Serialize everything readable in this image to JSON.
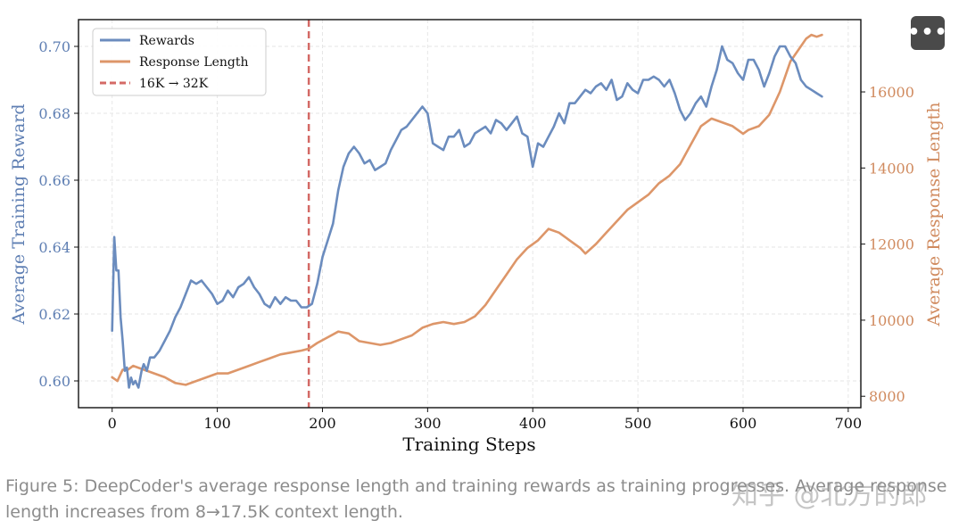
{
  "menu": {
    "more_label": "•••"
  },
  "chart_data": {
    "type": "line",
    "x_label": "Training Steps",
    "y_left_label": "Average Training Reward",
    "y_right_label": "Average Response Length",
    "x_ticks": [
      0,
      100,
      200,
      300,
      400,
      500,
      600,
      700
    ],
    "x_range": [
      -32,
      712
    ],
    "y_left_range": [
      0.592,
      0.708
    ],
    "y_left_ticks": [
      "0.60",
      "0.62",
      "0.64",
      "0.66",
      "0.68",
      "0.70"
    ],
    "y_right_range": [
      7700,
      17900
    ],
    "y_right_ticks": [
      "8000",
      "10000",
      "12000",
      "14000",
      "16000"
    ],
    "legend": [
      "Rewards",
      "Response Length",
      "16K → 32K"
    ],
    "context_switch_step": 187,
    "colors": {
      "rewards": "#6b8cbe",
      "length": "#dd9669",
      "vline": "#d46a66",
      "left_axis": "#5f7fb3",
      "right_axis": "#d08a5e"
    },
    "series": [
      {
        "name": "Rewards",
        "x": [
          0,
          2,
          4,
          6,
          8,
          10,
          12,
          14,
          16,
          18,
          20,
          22,
          25,
          28,
          30,
          33,
          36,
          40,
          45,
          50,
          55,
          60,
          65,
          70,
          75,
          80,
          85,
          90,
          95,
          100,
          105,
          110,
          115,
          120,
          125,
          130,
          135,
          140,
          145,
          150,
          155,
          160,
          165,
          170,
          175,
          180,
          185,
          190,
          195,
          200,
          205,
          210,
          215,
          220,
          225,
          230,
          235,
          240,
          245,
          250,
          255,
          260,
          265,
          270,
          275,
          280,
          285,
          290,
          295,
          300,
          305,
          310,
          315,
          320,
          325,
          330,
          335,
          340,
          345,
          350,
          355,
          360,
          365,
          370,
          375,
          380,
          385,
          390,
          395,
          400,
          405,
          410,
          415,
          420,
          425,
          430,
          435,
          440,
          445,
          450,
          455,
          460,
          465,
          470,
          475,
          480,
          485,
          490,
          495,
          500,
          505,
          510,
          515,
          520,
          525,
          530,
          535,
          540,
          545,
          550,
          555,
          560,
          565,
          570,
          575,
          580,
          585,
          590,
          595,
          600,
          605,
          610,
          615,
          620,
          625,
          630,
          635,
          640,
          645,
          650,
          655,
          660,
          665,
          670,
          675
        ],
        "values": [
          0.615,
          0.643,
          0.633,
          0.633,
          0.619,
          0.612,
          0.603,
          0.604,
          0.598,
          0.601,
          0.599,
          0.6,
          0.598,
          0.603,
          0.605,
          0.603,
          0.607,
          0.607,
          0.609,
          0.612,
          0.615,
          0.619,
          0.622,
          0.626,
          0.63,
          0.629,
          0.63,
          0.628,
          0.626,
          0.623,
          0.624,
          0.627,
          0.625,
          0.628,
          0.629,
          0.631,
          0.628,
          0.626,
          0.623,
          0.622,
          0.625,
          0.623,
          0.625,
          0.624,
          0.624,
          0.622,
          0.622,
          0.623,
          0.629,
          0.637,
          0.642,
          0.647,
          0.657,
          0.664,
          0.668,
          0.67,
          0.668,
          0.665,
          0.666,
          0.663,
          0.664,
          0.665,
          0.669,
          0.672,
          0.675,
          0.676,
          0.678,
          0.68,
          0.682,
          0.68,
          0.671,
          0.67,
          0.669,
          0.673,
          0.673,
          0.675,
          0.67,
          0.671,
          0.674,
          0.675,
          0.676,
          0.674,
          0.678,
          0.677,
          0.675,
          0.677,
          0.679,
          0.674,
          0.673,
          0.664,
          0.671,
          0.67,
          0.673,
          0.676,
          0.68,
          0.677,
          0.683,
          0.683,
          0.685,
          0.687,
          0.686,
          0.688,
          0.689,
          0.687,
          0.69,
          0.684,
          0.685,
          0.689,
          0.687,
          0.686,
          0.69,
          0.69,
          0.691,
          0.69,
          0.688,
          0.69,
          0.686,
          0.681,
          0.678,
          0.68,
          0.683,
          0.685,
          0.682,
          0.688,
          0.693,
          0.7,
          0.696,
          0.695,
          0.692,
          0.69,
          0.696,
          0.696,
          0.693,
          0.688,
          0.692,
          0.697,
          0.7,
          0.7,
          0.697,
          0.695,
          0.69,
          0.688,
          0.687,
          0.686,
          0.685
        ]
      },
      {
        "name": "Response Length",
        "x": [
          0,
          5,
          10,
          15,
          20,
          30,
          40,
          50,
          60,
          70,
          80,
          90,
          100,
          110,
          120,
          130,
          140,
          150,
          160,
          170,
          180,
          187,
          195,
          205,
          215,
          225,
          235,
          245,
          255,
          265,
          275,
          285,
          295,
          305,
          315,
          325,
          335,
          345,
          355,
          365,
          375,
          385,
          395,
          405,
          415,
          425,
          435,
          445,
          450,
          460,
          470,
          480,
          490,
          500,
          510,
          520,
          530,
          540,
          550,
          560,
          570,
          580,
          590,
          600,
          605,
          615,
          625,
          635,
          645,
          655,
          660,
          665,
          670,
          675
        ],
        "values": [
          8500,
          8400,
          8700,
          8700,
          8800,
          8700,
          8600,
          8500,
          8350,
          8300,
          8400,
          8500,
          8600,
          8600,
          8700,
          8800,
          8900,
          9000,
          9100,
          9150,
          9200,
          9250,
          9400,
          9550,
          9700,
          9650,
          9450,
          9400,
          9350,
          9400,
          9500,
          9600,
          9800,
          9900,
          9950,
          9900,
          9950,
          10100,
          10400,
          10800,
          11200,
          11600,
          11900,
          12100,
          12400,
          12300,
          12100,
          11900,
          11750,
          12000,
          12300,
          12600,
          12900,
          13100,
          13300,
          13600,
          13800,
          14100,
          14600,
          15100,
          15300,
          15200,
          15100,
          14900,
          15000,
          15100,
          15400,
          16000,
          16800,
          17200,
          17400,
          17500,
          17450,
          17500
        ]
      }
    ]
  },
  "caption": {
    "text": "Figure 5: DeepCoder's average response length and training rewards as training progresses. Average response length increases from 8→17.5K context length."
  },
  "watermark": {
    "text": "知乎 @北方的郎"
  }
}
